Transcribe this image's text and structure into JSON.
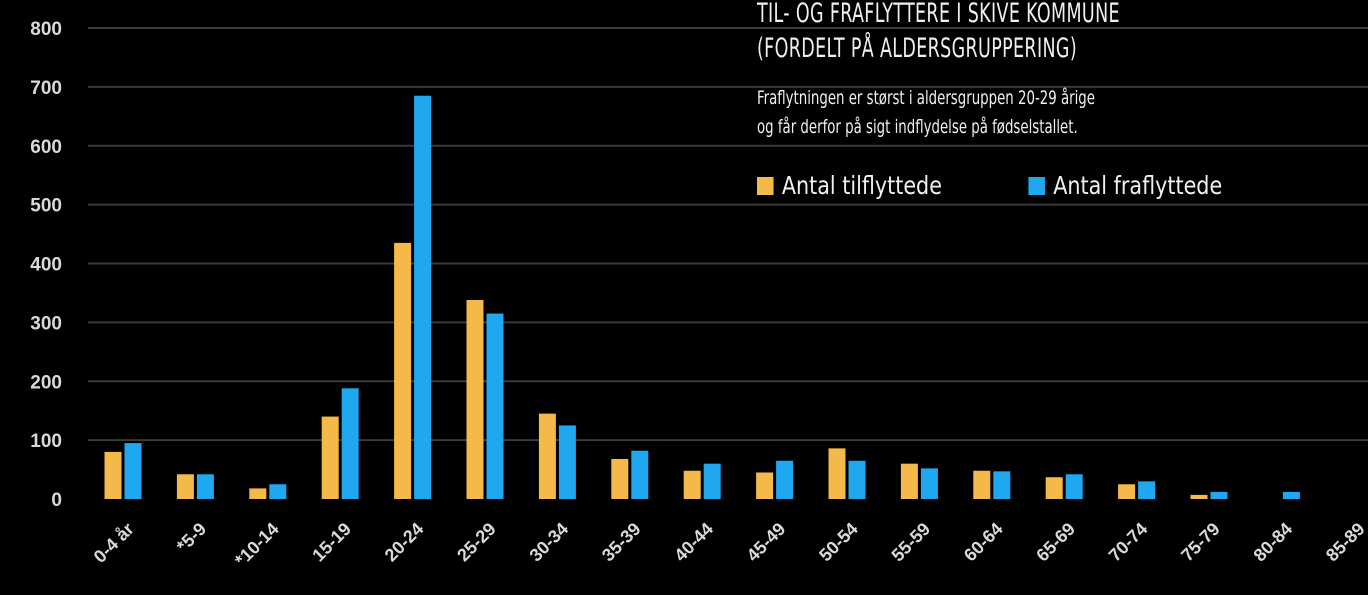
{
  "colors": {
    "tilflyttede": "#F5B94A",
    "fraflyttede": "#1FA7EF",
    "background": "#000000",
    "grid": "#3a3a3a",
    "text": "#d9d9d9"
  },
  "header": {
    "title": "TIL- OG FRAFLYTTERE I SKIVE KOMMUNE",
    "subtitle": "(FORDELT PÅ ALDERSGRUPPERING)",
    "note_line1": "Fraflytningen er størst i aldersgruppen 20-29 årige",
    "note_line2": "og får derfor på sigt indflydelse på fødselstallet."
  },
  "legend": {
    "item1": "Antal tilflyttede",
    "item2": "Antal fraflyttede"
  },
  "chart_data": {
    "type": "bar",
    "title": "TIL- OG FRAFLYTTERE I SKIVE KOMMUNE",
    "subtitle": "(FORDELT PÅ ALDERSGRUPPERING)",
    "categories": [
      "0-4 år",
      "*5-9",
      "*10-14",
      "15-19",
      "20-24",
      "25-29",
      "30-34",
      "35-39",
      "40-44",
      "45-49",
      "50-54",
      "55-59",
      "60-64",
      "65-69",
      "70-74",
      "75-79",
      "80-84",
      "85-89"
    ],
    "series": [
      {
        "name": "Antal tilflyttede",
        "color": "#F5B94A",
        "values": [
          80,
          42,
          18,
          140,
          435,
          338,
          145,
          68,
          48,
          45,
          86,
          60,
          48,
          37,
          25,
          7,
          0,
          0
        ]
      },
      {
        "name": "Antal fraflyttede",
        "color": "#1FA7EF",
        "values": [
          95,
          42,
          25,
          188,
          685,
          315,
          125,
          82,
          60,
          65,
          65,
          52,
          47,
          42,
          30,
          12,
          12,
          0
        ]
      }
    ],
    "yticks": [
      0,
      100,
      200,
      300,
      400,
      500,
      600,
      700,
      800
    ],
    "ylim": [
      0,
      800
    ],
    "grid": true,
    "legend_position": "top-right"
  }
}
